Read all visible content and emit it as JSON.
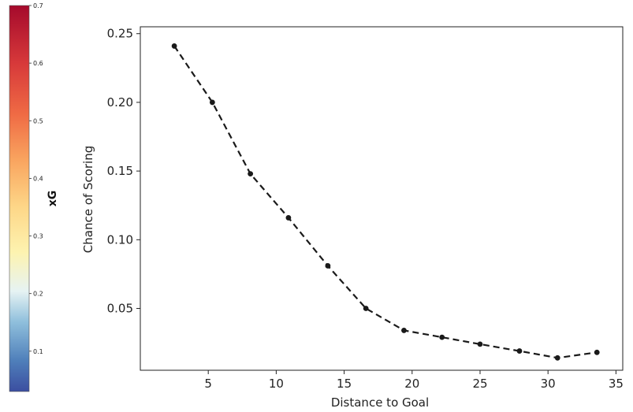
{
  "colorbar": {
    "label": "xG",
    "ticks": [
      "0.1",
      "0.2",
      "0.3",
      "0.4",
      "0.5",
      "0.6",
      "0.7"
    ],
    "tick_values": [
      0.1,
      0.2,
      0.3,
      0.4,
      0.5,
      0.6,
      0.7
    ],
    "range": [
      0.03,
      0.7
    ],
    "colormap": "RdYlBu_r"
  },
  "chart_data": {
    "type": "line",
    "title": "",
    "xlabel": "Distance to Goal",
    "ylabel": "Chance of Scoring",
    "xlim": [
      0,
      35.5
    ],
    "ylim": [
      0.005,
      0.255
    ],
    "xticks": [
      5,
      10,
      15,
      20,
      25,
      30,
      35
    ],
    "yticks": [
      0.05,
      0.1,
      0.15,
      0.2,
      0.25
    ],
    "ytick_labels": [
      "0.05",
      "0.10",
      "0.15",
      "0.20",
      "0.25"
    ],
    "grid": false,
    "series": [
      {
        "line_style": "dashed",
        "marker": "circle",
        "color": "#1a1a1a",
        "x": [
          2.5,
          5.3,
          8.1,
          10.9,
          13.8,
          16.6,
          19.4,
          22.2,
          25.0,
          27.9,
          30.7,
          33.6
        ],
        "y": [
          0.241,
          0.2,
          0.148,
          0.116,
          0.081,
          0.05,
          0.034,
          0.029,
          0.024,
          0.019,
          0.014,
          0.018
        ]
      }
    ]
  }
}
